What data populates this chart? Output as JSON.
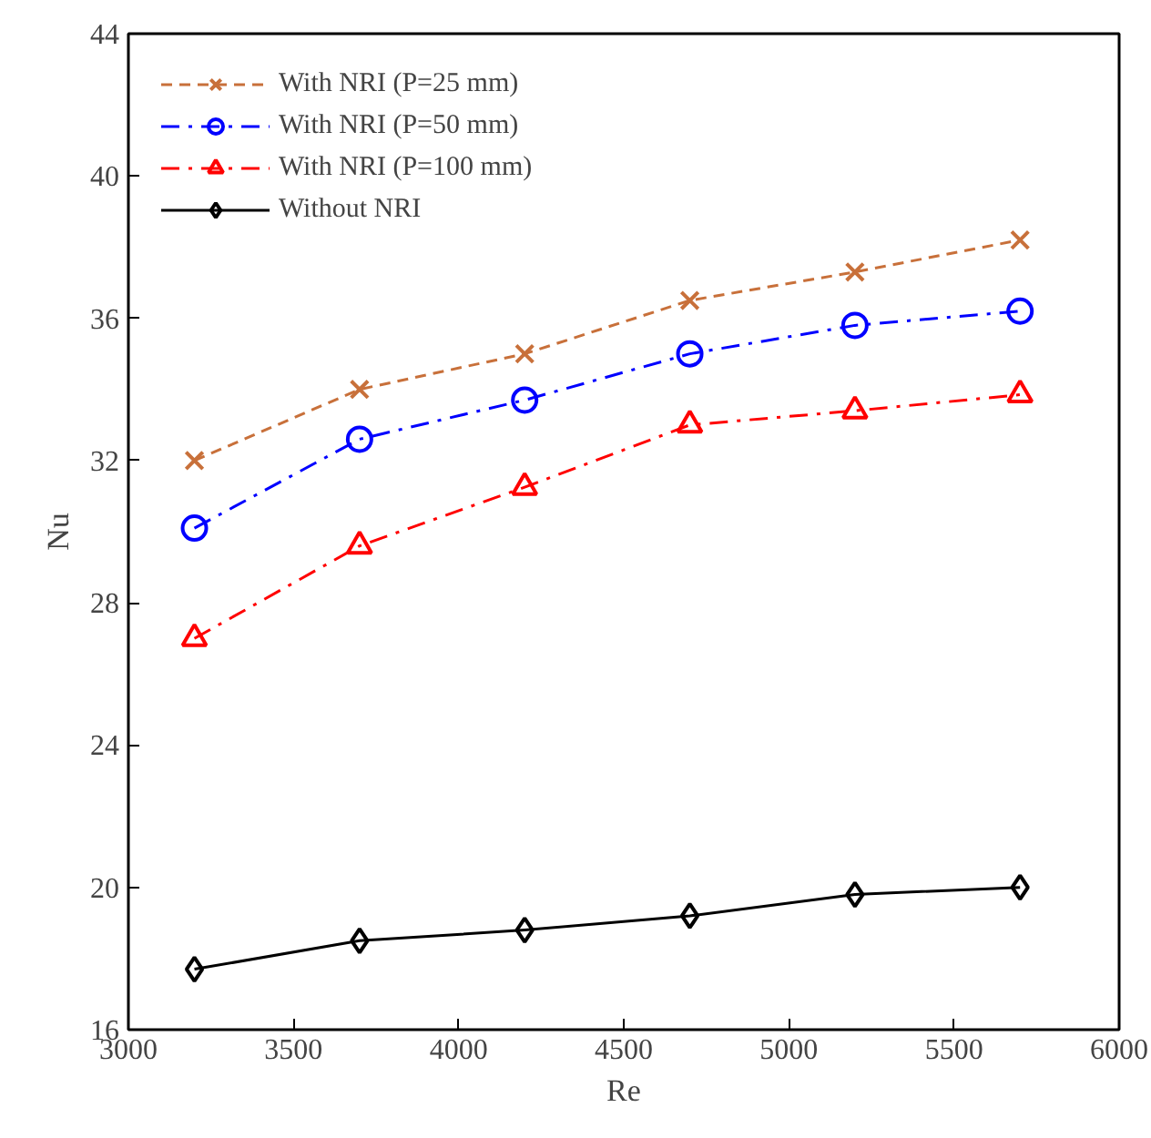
{
  "chart_data": {
    "type": "line",
    "xlabel": "Re",
    "ylabel": "Nu",
    "x": [
      3200,
      3700,
      4200,
      4700,
      5200,
      5700
    ],
    "xlim": [
      3000,
      6000
    ],
    "xticks": [
      3000,
      3500,
      4000,
      4500,
      5000,
      5500,
      6000
    ],
    "ylim": [
      16,
      44
    ],
    "yticks": [
      16,
      20,
      24,
      28,
      32,
      36,
      40,
      44
    ],
    "grid": false,
    "legend": "top left",
    "series": [
      {
        "name": "With NRI (P=25 mm)",
        "color": "#c8703a",
        "marker": "cross",
        "line_style": "dashed",
        "values": [
          32.0,
          34.0,
          35.0,
          36.5,
          37.3,
          38.2
        ]
      },
      {
        "name": "With NRI (P=50 mm)",
        "color": "#0000ff",
        "marker": "circle",
        "line_style": "dashdot",
        "values": [
          30.1,
          32.6,
          33.7,
          35.0,
          35.8,
          36.2
        ]
      },
      {
        "name": "With NRI (P=100 mm)",
        "color": "#ff0000",
        "marker": "triangle",
        "line_style": "dashdot",
        "values": [
          27.0,
          29.6,
          31.25,
          33.0,
          33.4,
          33.85
        ]
      },
      {
        "name": "Without NRI",
        "color": "#000000",
        "marker": "diamond",
        "line_style": "solid",
        "values": [
          17.7,
          18.5,
          18.8,
          19.2,
          19.8,
          20.0
        ]
      }
    ]
  }
}
